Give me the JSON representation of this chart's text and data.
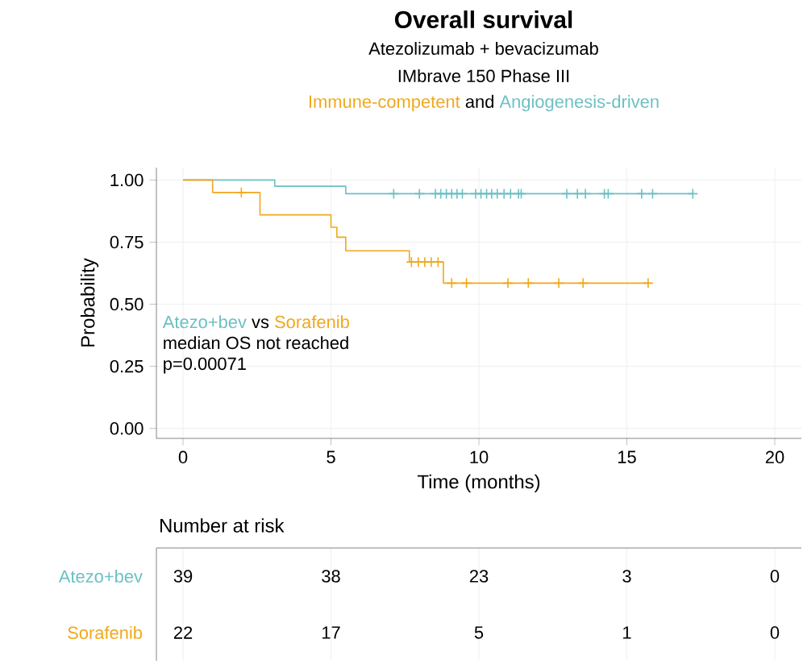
{
  "chart_data": {
    "type": "step",
    "title": "Overall survival",
    "subtitle": "Atezolizumab + bevacizumab",
    "xlabel": "Time (months)",
    "ylabel": "Probability",
    "xlim": [
      -0.9,
      20.9
    ],
    "ylim": [
      -0.04,
      1.05
    ],
    "xticks": [
      0,
      5,
      10,
      15,
      20
    ],
    "yticks": [
      {
        "value": 0,
        "label": "0.00"
      },
      {
        "value": 0.25,
        "label": "0.25"
      },
      {
        "value": 0.5,
        "label": "0.50"
      },
      {
        "value": 0.75,
        "label": "0.75"
      },
      {
        "value": 1,
        "label": "1.00"
      }
    ],
    "grid": true,
    "series": [
      {
        "name": "Atezo+bev",
        "color": "#6cc0c4",
        "x": [
          0,
          3.1,
          5.5,
          17.23
        ],
        "values": [
          1.0,
          0.975,
          0.945,
          0.945
        ]
      },
      {
        "name": "Sorafenib",
        "color": "#f0a81c",
        "x": [
          0,
          1.0,
          2.6,
          5.0,
          5.2,
          5.5,
          7.65,
          8.8,
          15.75
        ],
        "values": [
          1.0,
          0.95,
          0.86,
          0.81,
          0.77,
          0.715,
          0.67,
          0.585,
          0.585
        ]
      },
      {
        "type": "scatter",
        "marker": "cross",
        "color": "#6cc0c4",
        "x": [
          7.12,
          7.99,
          8.53,
          8.71,
          8.9,
          9.08,
          9.26,
          9.44,
          9.89,
          10.07,
          10.26,
          10.43,
          10.62,
          10.85,
          11.07,
          11.34,
          11.43,
          12.97,
          13.33,
          13.6,
          14.24,
          14.37,
          15.5,
          15.87,
          17.23
        ],
        "values": [
          0.945,
          0.945,
          0.945,
          0.945,
          0.945,
          0.945,
          0.945,
          0.945,
          0.945,
          0.945,
          0.945,
          0.945,
          0.945,
          0.945,
          0.945,
          0.945,
          0.945,
          0.945,
          0.945,
          0.945,
          0.945,
          0.945,
          0.945,
          0.945,
          0.945
        ]
      },
      {
        "type": "scatter",
        "marker": "cross",
        "color": "#f0a81c",
        "x": [
          1.97,
          7.72,
          7.95,
          8.17,
          8.39,
          8.62,
          9.08,
          9.58,
          10.98,
          11.67,
          12.7,
          13.52,
          15.72
        ],
        "values": [
          0.95,
          0.67,
          0.67,
          0.67,
          0.67,
          0.67,
          0.585,
          0.585,
          0.585,
          0.585,
          0.585,
          0.585,
          0.585
        ]
      }
    ],
    "annotations": [
      "IMbrave 150 Phase III",
      "Immune-competent",
      "and",
      "Angiogenesis-driven",
      "vs",
      "median OS not reached",
      "p=0.00071",
      "Number at risk",
      "39",
      "38",
      "23",
      "3",
      "0",
      "22",
      "17",
      "5",
      "1",
      "0"
    ]
  }
}
